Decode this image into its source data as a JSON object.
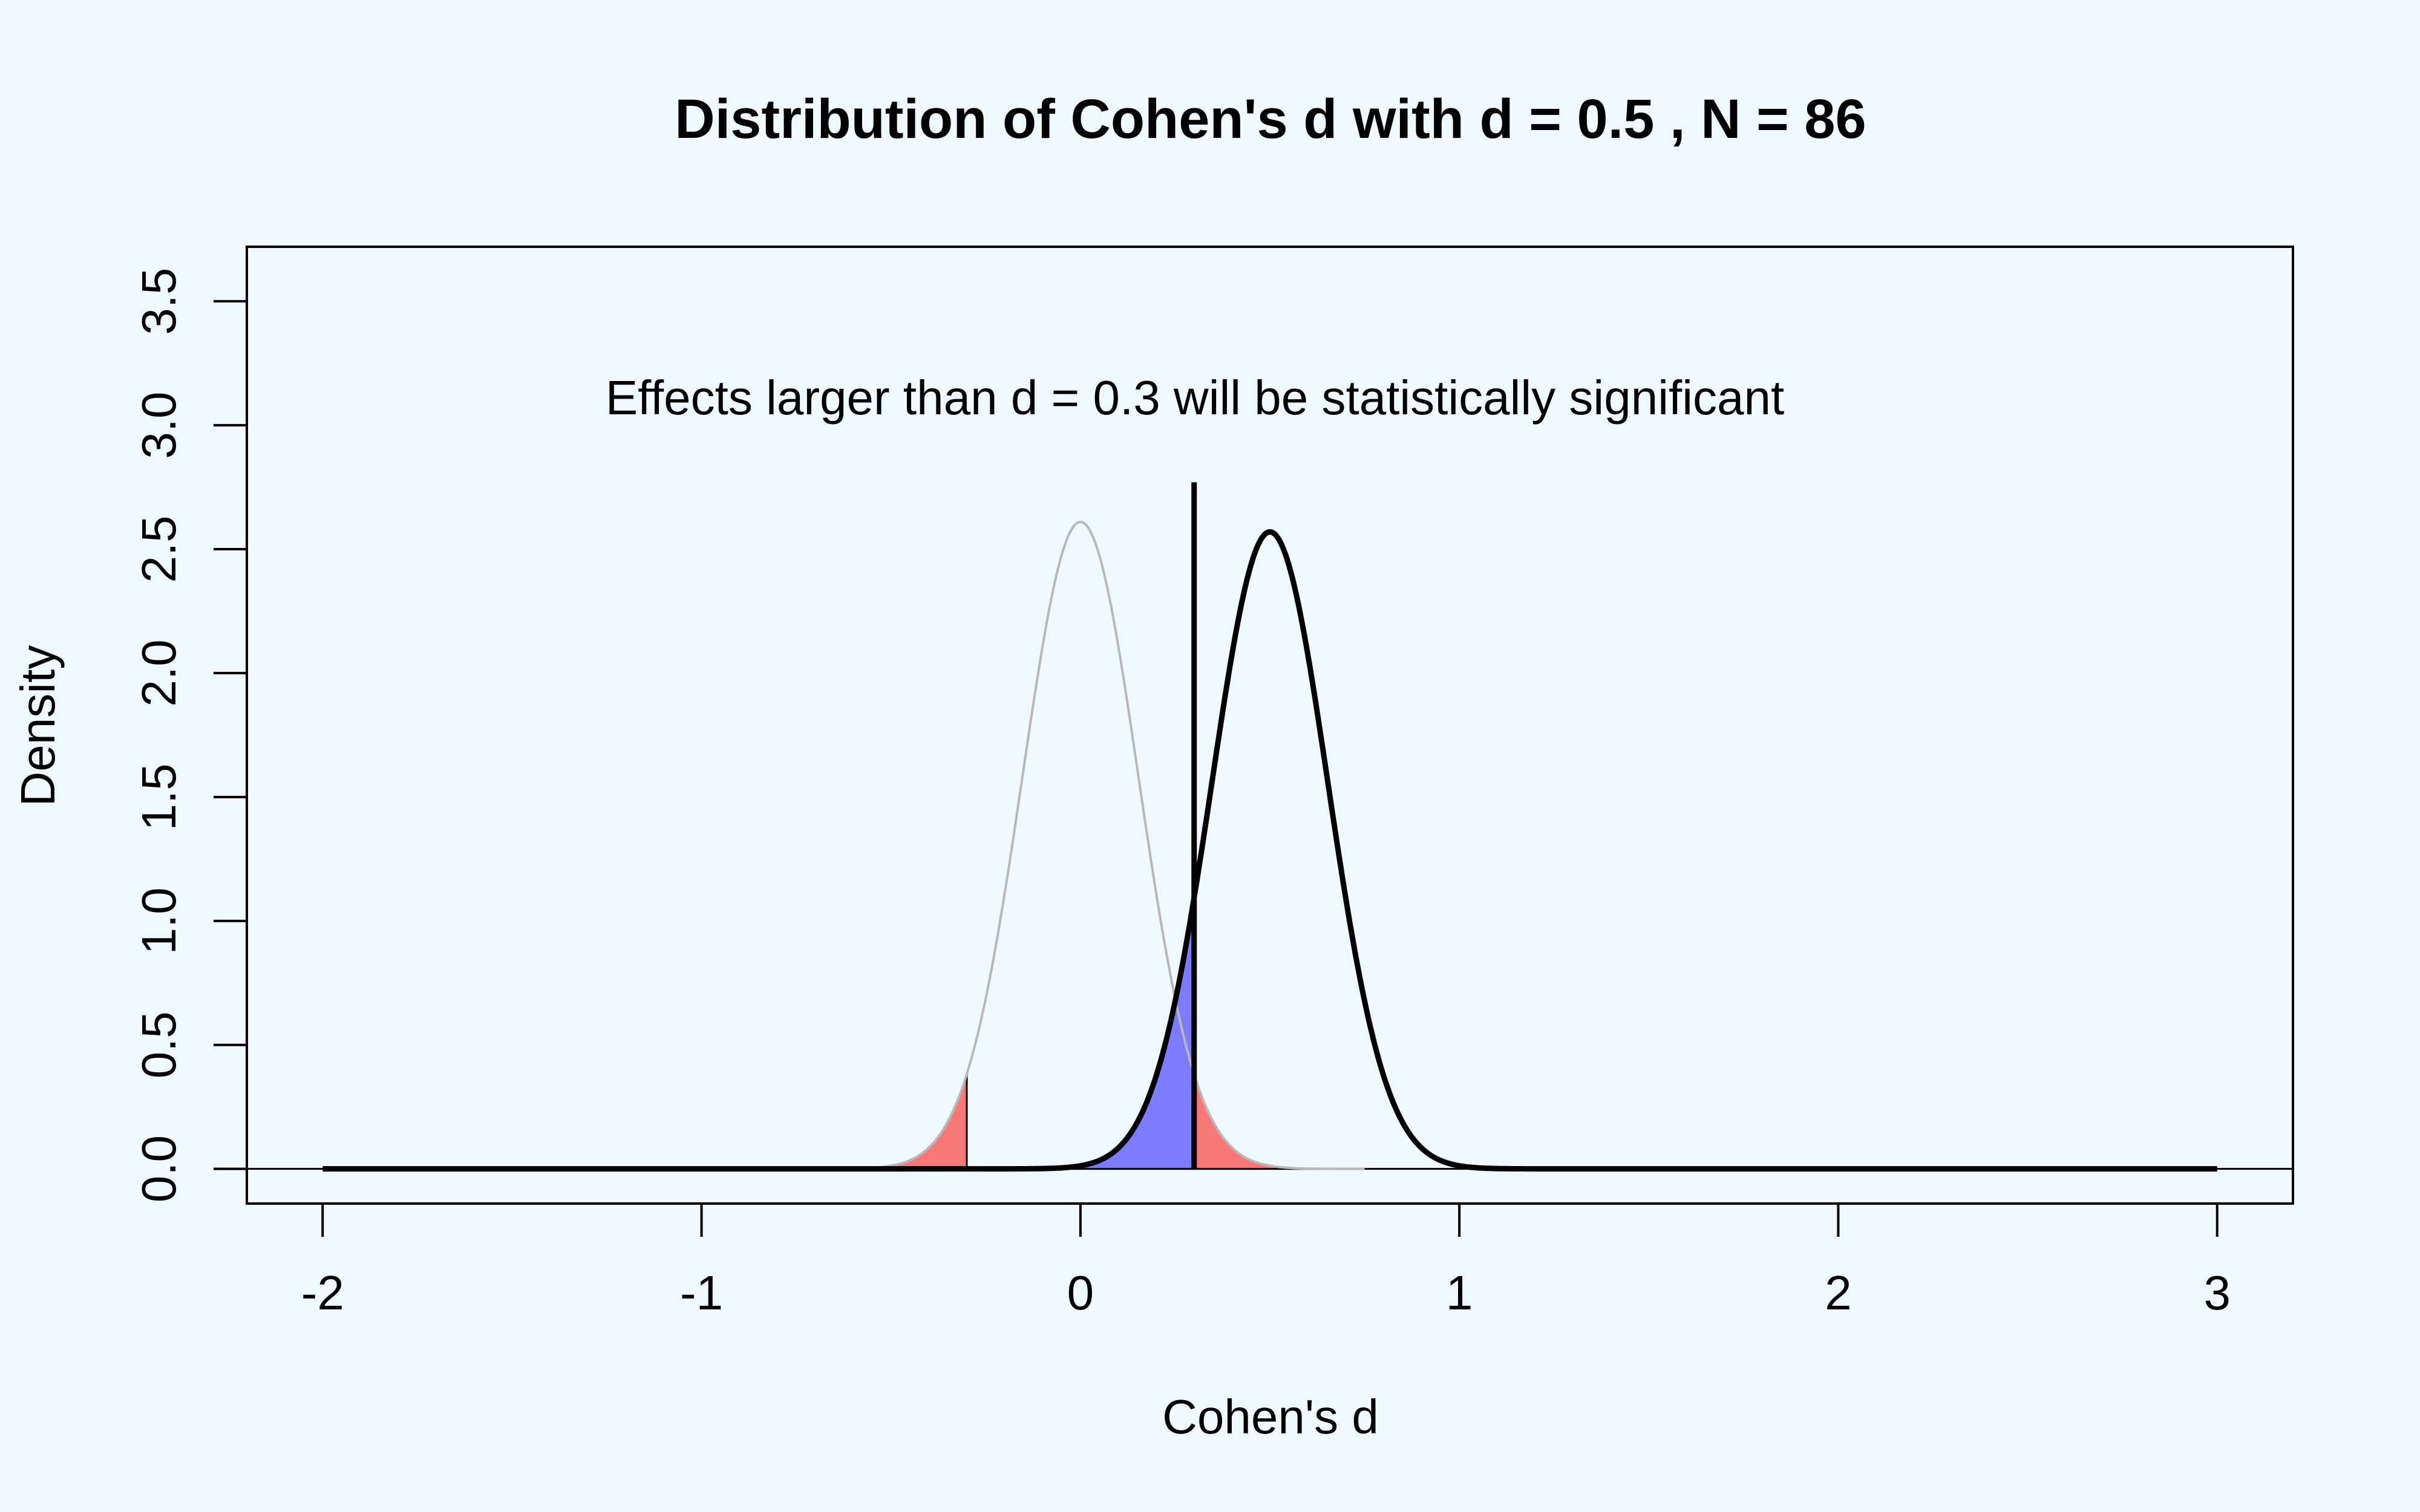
{
  "chart_data": {
    "type": "line",
    "title": "Distribution of Cohen's d with d =  0.5 , N =  86",
    "xlabel": "Cohen's d",
    "ylabel": "Density",
    "annotation": "Effects larger than d =  0.3 will be statistically significant",
    "xlim": [
      -2.2,
      3.2
    ],
    "ylim": [
      -0.14,
      3.72
    ],
    "x_ticks": [
      -2,
      -1,
      0,
      1,
      2,
      3
    ],
    "y_ticks": [
      0.0,
      0.5,
      1.0,
      1.5,
      2.0,
      2.5,
      3.0,
      3.5
    ],
    "x_tick_labels": [
      "-2",
      "-1",
      "0",
      "1",
      "2",
      "3"
    ],
    "y_tick_labels": [
      "0.0",
      "0.5",
      "1.0",
      "1.5",
      "2.0",
      "2.5",
      "3.0",
      "3.5"
    ],
    "x_range": [
      -2,
      3
    ],
    "null_mean": 0.0,
    "alt_mean": 0.5,
    "sd": 0.153,
    "null_peak": 2.61,
    "alt_peak": 2.57,
    "critical_d": 0.3,
    "critical_line_top": 2.77,
    "colors": {
      "background": "#f0f8ff",
      "null_curve": "#b8b8b8",
      "alt_curve": "#000000",
      "alpha_fill": "#f87878",
      "beta_fill": "#7b7bff"
    }
  }
}
